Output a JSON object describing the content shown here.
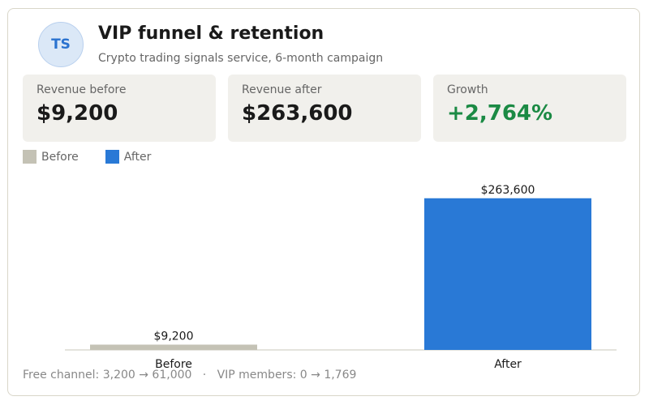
{
  "header": {
    "avatar_initials": "TS",
    "title": "VIP funnel & retention",
    "subtitle": "Crypto trading signals service, 6-month campaign"
  },
  "kpis": [
    {
      "label": "Revenue before",
      "value": "$9,200"
    },
    {
      "label": "Revenue after",
      "value": "$263,600"
    },
    {
      "label": "Growth",
      "value": "+2,764%"
    }
  ],
  "legend": [
    {
      "label": "Before",
      "color": "#c4c2b5"
    },
    {
      "label": "After",
      "color": "#2979d6"
    }
  ],
  "chart_data": {
    "type": "bar",
    "categories": [
      "Before",
      "After"
    ],
    "values": [
      9200,
      263600
    ],
    "value_labels": [
      "$9,200",
      "$263,600"
    ],
    "colors": [
      "#c4c2b5",
      "#2979d6"
    ],
    "ylim": [
      0,
      290000
    ],
    "grid": false
  },
  "footer": {
    "text": "Free channel: 3,200 → 61,000   ·   VIP members: 0 → 1,769"
  },
  "colors": {
    "accent": "#2979d6",
    "growth": "#1b8a44",
    "kpi_bg": "#f1f0ec"
  }
}
